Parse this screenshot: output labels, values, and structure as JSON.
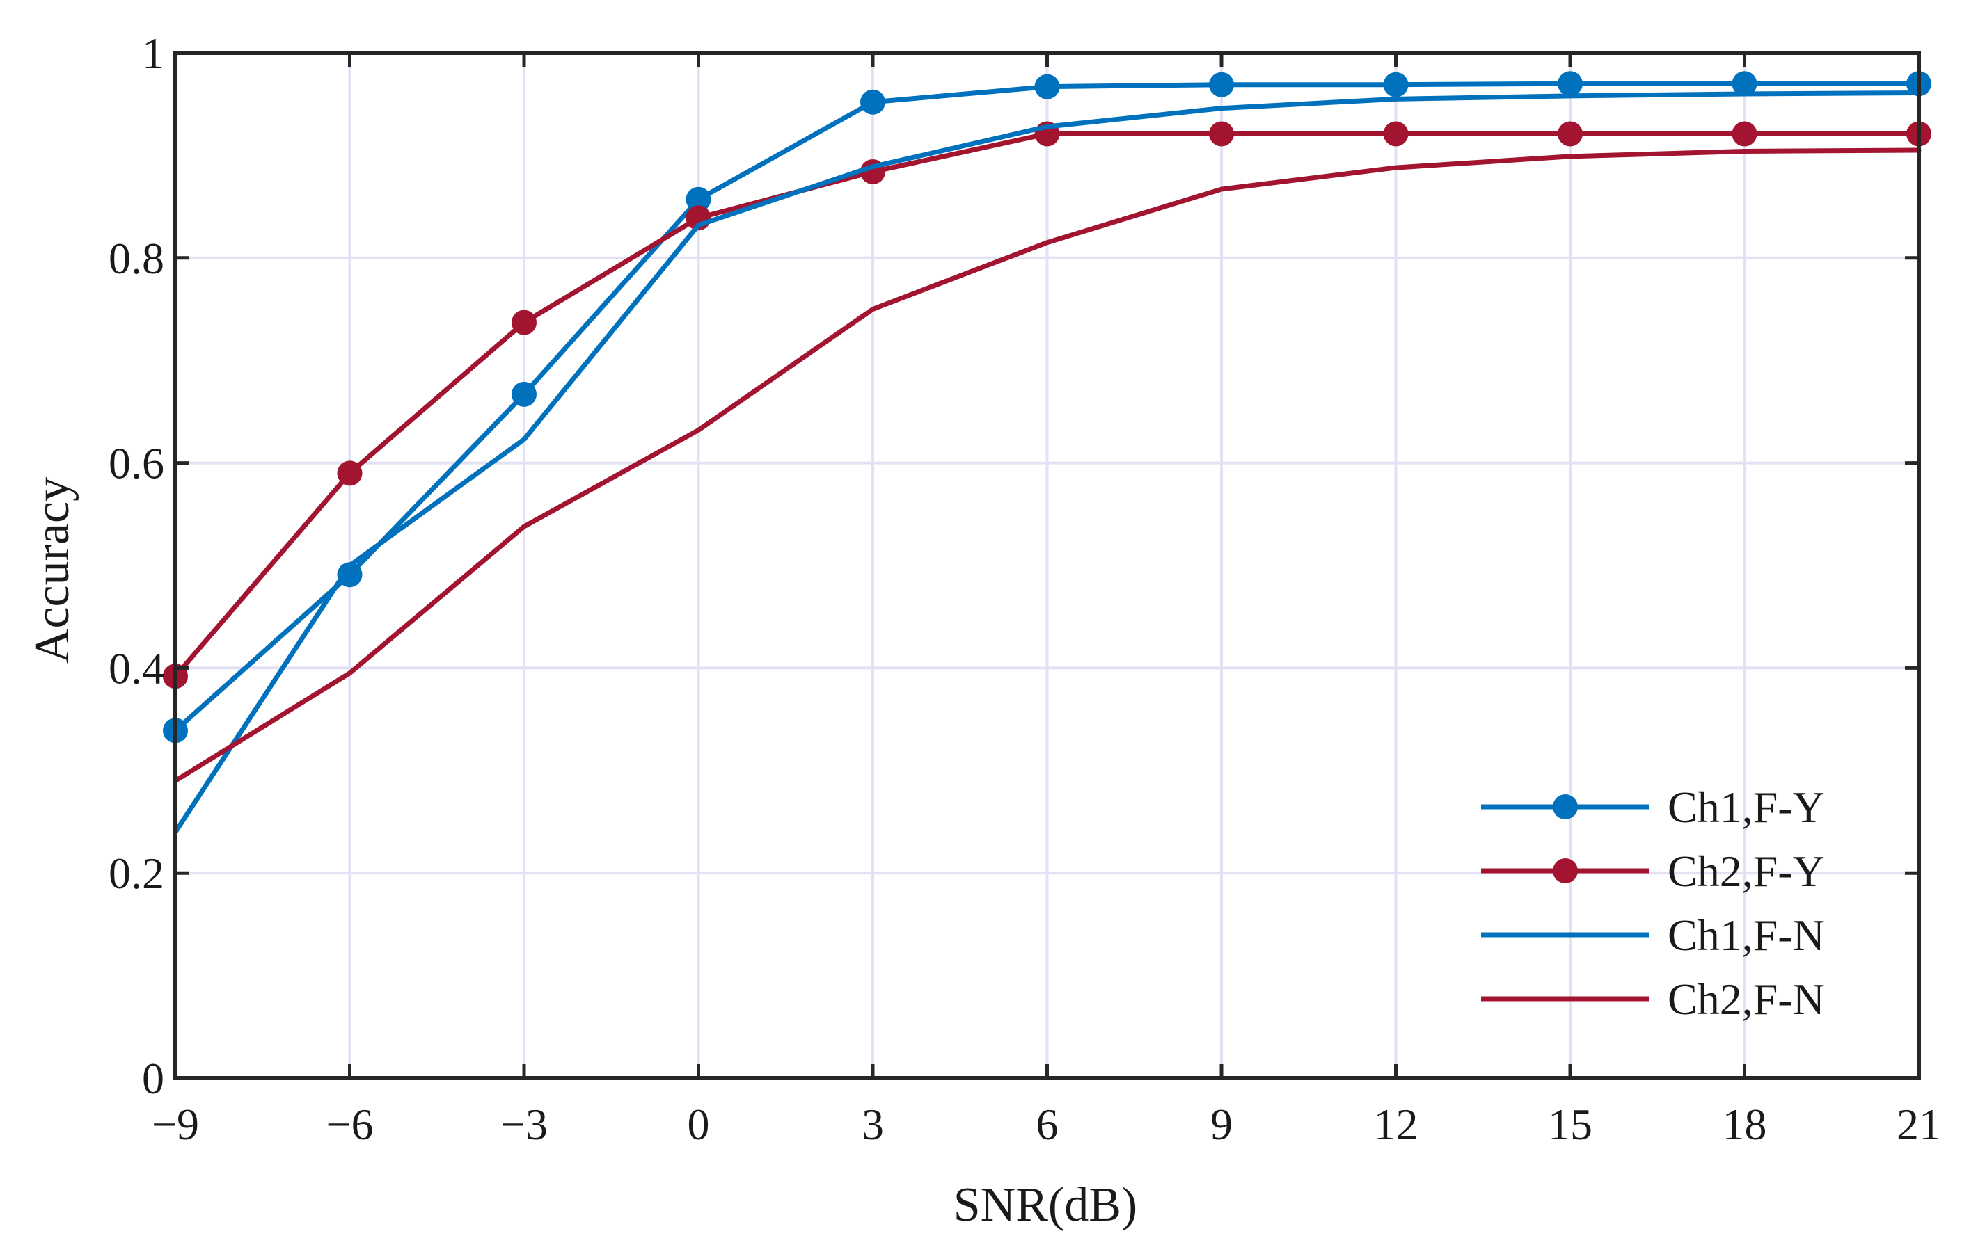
{
  "chart_data": {
    "type": "line",
    "title": "",
    "xlabel": "SNR(dB)",
    "ylabel": "Accuracy",
    "x": [
      -9,
      -6,
      -3,
      0,
      3,
      6,
      9,
      12,
      15,
      18,
      21
    ],
    "xticks": [
      -9,
      -6,
      -3,
      0,
      3,
      6,
      9,
      12,
      15,
      18,
      21
    ],
    "xtick_labels": [
      "−9",
      "−6",
      "−3",
      "0",
      "3",
      "6",
      "9",
      "12",
      "15",
      "18",
      "21"
    ],
    "yticks": [
      0,
      0.2,
      0.4,
      0.6,
      0.8,
      1
    ],
    "ytick_labels": [
      "0",
      "0.2",
      "0.4",
      "0.6",
      "0.8",
      "1"
    ],
    "xlim": [
      -9,
      21
    ],
    "ylim": [
      0,
      1
    ],
    "grid": true,
    "legend_position": "bottom-right",
    "series": [
      {
        "name": "Ch1,F-Y",
        "color": "#0072BD",
        "marker": "circle",
        "values": [
          0.339,
          0.491,
          0.667,
          0.857,
          0.952,
          0.967,
          0.969,
          0.969,
          0.97,
          0.97,
          0.97
        ]
      },
      {
        "name": "Ch2,F-Y",
        "color": "#A2142F",
        "marker": "circle",
        "values": [
          0.392,
          0.59,
          0.737,
          0.839,
          0.884,
          0.921,
          0.921,
          0.921,
          0.921,
          0.921,
          0.921
        ]
      },
      {
        "name": "Ch1,F-N",
        "color": "#0072BD",
        "marker": "none",
        "values": [
          0.24,
          0.5,
          0.623,
          0.832,
          0.889,
          0.928,
          0.946,
          0.955,
          0.958,
          0.96,
          0.961
        ]
      },
      {
        "name": "Ch2,F-N",
        "color": "#A2142F",
        "marker": "none",
        "values": [
          0.29,
          0.395,
          0.538,
          0.632,
          0.75,
          0.815,
          0.867,
          0.888,
          0.899,
          0.904,
          0.905
        ]
      }
    ]
  }
}
